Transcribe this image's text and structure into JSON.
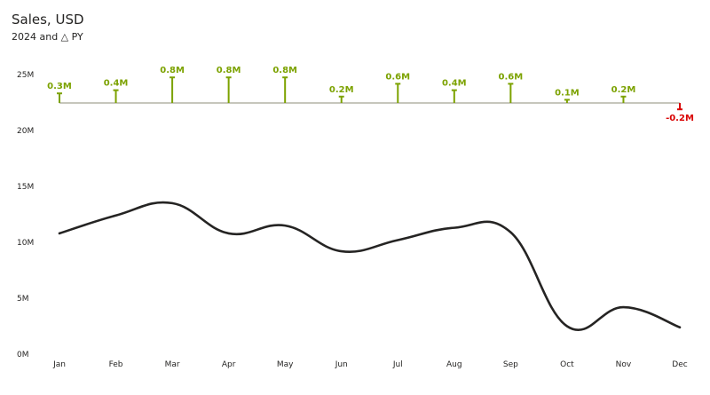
{
  "header": {
    "title": "Sales, USD",
    "subtitle": "2024 and △ PY"
  },
  "colors": {
    "line": "#252423",
    "positive": "#7ca200",
    "negative": "#d90000",
    "baseline": "#8c8c7a"
  },
  "chart_data": {
    "type": "line",
    "categories": [
      "Jan",
      "Feb",
      "Mar",
      "Apr",
      "May",
      "Jun",
      "Jul",
      "Aug",
      "Sep",
      "Oct",
      "Nov",
      "Dec"
    ],
    "series": [
      {
        "values": [
          10.8,
          12.4,
          13.5,
          10.8,
          11.5,
          9.2,
          10.2,
          11.3,
          10.9,
          2.5,
          4.2,
          2.4
        ]
      }
    ],
    "ylim": [
      0,
      25
    ],
    "yticks": [
      0,
      5,
      10,
      15,
      20,
      25
    ],
    "ytick_labels": [
      "0M",
      "5M",
      "10M",
      "15M",
      "20M",
      "25M"
    ],
    "delta_py": {
      "values": [
        0.3,
        0.4,
        0.8,
        0.8,
        0.8,
        0.2,
        0.6,
        0.4,
        0.6,
        0.1,
        0.2,
        -0.2
      ],
      "labels": [
        "0.3M",
        "0.4M",
        "0.8M",
        "0.8M",
        "0.8M",
        "0.2M",
        "0.6M",
        "0.4M",
        "0.6M",
        "0.1M",
        "0.2M",
        "-0.2M"
      ]
    },
    "grid": false
  }
}
